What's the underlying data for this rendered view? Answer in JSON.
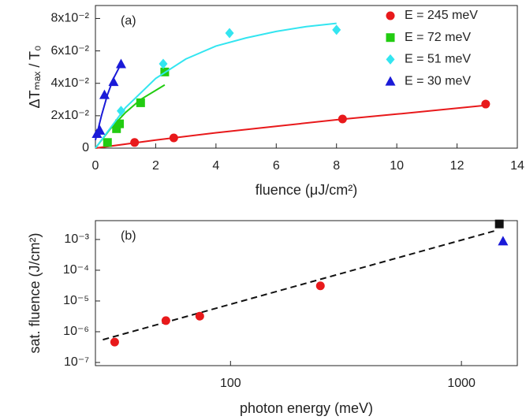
{
  "chart_data": [
    {
      "type": "scatter",
      "annotation": "(a)",
      "xlabel": "fluence (μJ/cm²)",
      "ylabel": "ΔTₘₐₓ / T₀",
      "xlim": [
        0,
        14
      ],
      "xticks": [
        0,
        2,
        4,
        6,
        8,
        10,
        12,
        14
      ],
      "ylim": [
        0,
        0.088
      ],
      "yticks": [
        0,
        {
          "value": 0.02,
          "label": "2x10⁻²"
        },
        {
          "value": 0.04,
          "label": "4x10⁻²"
        },
        {
          "value": 0.06,
          "label": "6x10⁻²"
        },
        {
          "value": 0.08,
          "label": "8x10⁻²"
        }
      ],
      "legend": "upper right",
      "series": [
        {
          "name": "E = 245 meV",
          "color": "#e8191b",
          "marker": "circle",
          "x": [
            1.3,
            2.6,
            8.2,
            12.95
          ],
          "values": [
            0.0035,
            0.0063,
            0.018,
            0.0272
          ],
          "fit_x": [
            0,
            2,
            4,
            6,
            8,
            10,
            13
          ],
          "fit_values": [
            0,
            0.005,
            0.0095,
            0.0135,
            0.0175,
            0.021,
            0.0265
          ]
        },
        {
          "name": "E = 72 meV",
          "color": "#22cc11",
          "marker": "square",
          "x": [
            0.4,
            0.7,
            0.8,
            1.5,
            2.3
          ],
          "values": [
            0.0035,
            0.012,
            0.015,
            0.028,
            0.047
          ],
          "fit_x": [
            0,
            0.5,
            1,
            1.5,
            2.3
          ],
          "fit_values": [
            0,
            0.012,
            0.022,
            0.03,
            0.039
          ]
        },
        {
          "name": "E = 51 meV",
          "color": "#33e5f0",
          "marker": "diamond",
          "x": [
            0.85,
            2.25,
            4.45,
            8
          ],
          "values": [
            0.023,
            0.052,
            0.071,
            0.073
          ],
          "fit_x": [
            0,
            1,
            2,
            3,
            4,
            5,
            6,
            7,
            8
          ],
          "fit_values": [
            0,
            0.025,
            0.043,
            0.055,
            0.063,
            0.068,
            0.072,
            0.075,
            0.077
          ]
        },
        {
          "name": "E = 30 meV",
          "color": "#1a1ad8",
          "marker": "triangle",
          "x": [
            0.05,
            0.15,
            0.3,
            0.6,
            0.85
          ],
          "values": [
            0.009,
            0.011,
            0.033,
            0.041,
            0.052
          ],
          "fit_x": [
            0,
            0.2,
            0.4,
            0.6,
            0.85
          ],
          "fit_values": [
            0.005,
            0.02,
            0.033,
            0.043,
            0.052
          ]
        }
      ]
    },
    {
      "type": "scatter",
      "annotation": "(b)",
      "log_x": true,
      "log_y": true,
      "xlabel": "photon energy (meV)",
      "ylabel": "sat. fluence (J/cm²)",
      "xlim": [
        26,
        1746
      ],
      "xticks": [
        100,
        1000
      ],
      "ylim": [
        7.9e-08,
        0.0041
      ],
      "yticks": [
        {
          "value": 1e-07,
          "label": "10⁻⁷"
        },
        {
          "value": 1e-06,
          "label": "10⁻⁶"
        },
        {
          "value": 1e-05,
          "label": "10⁻⁵"
        },
        {
          "value": 0.0001,
          "label": "10⁻⁴"
        },
        {
          "value": 0.001,
          "label": "10⁻³"
        }
      ],
      "series": [
        {
          "color": "#e8191b",
          "marker": "circle",
          "x": [
            31.5,
            52.5,
            73.6,
            245
          ],
          "values": [
            4.6e-07,
            2.3e-06,
            3.2e-06,
            3.1e-05
          ]
        },
        {
          "color": "#111111",
          "marker": "square",
          "x": [
            1459
          ],
          "values": [
            0.0032
          ]
        },
        {
          "color": "#1a1ad8",
          "marker": "triangle",
          "x": [
            1514
          ],
          "values": [
            0.00089
          ]
        }
      ],
      "fit": {
        "color": "#111111",
        "dash": true,
        "x": [
          28,
          1426
        ],
        "values": [
          5.5e-07,
          0.002
        ]
      }
    }
  ]
}
